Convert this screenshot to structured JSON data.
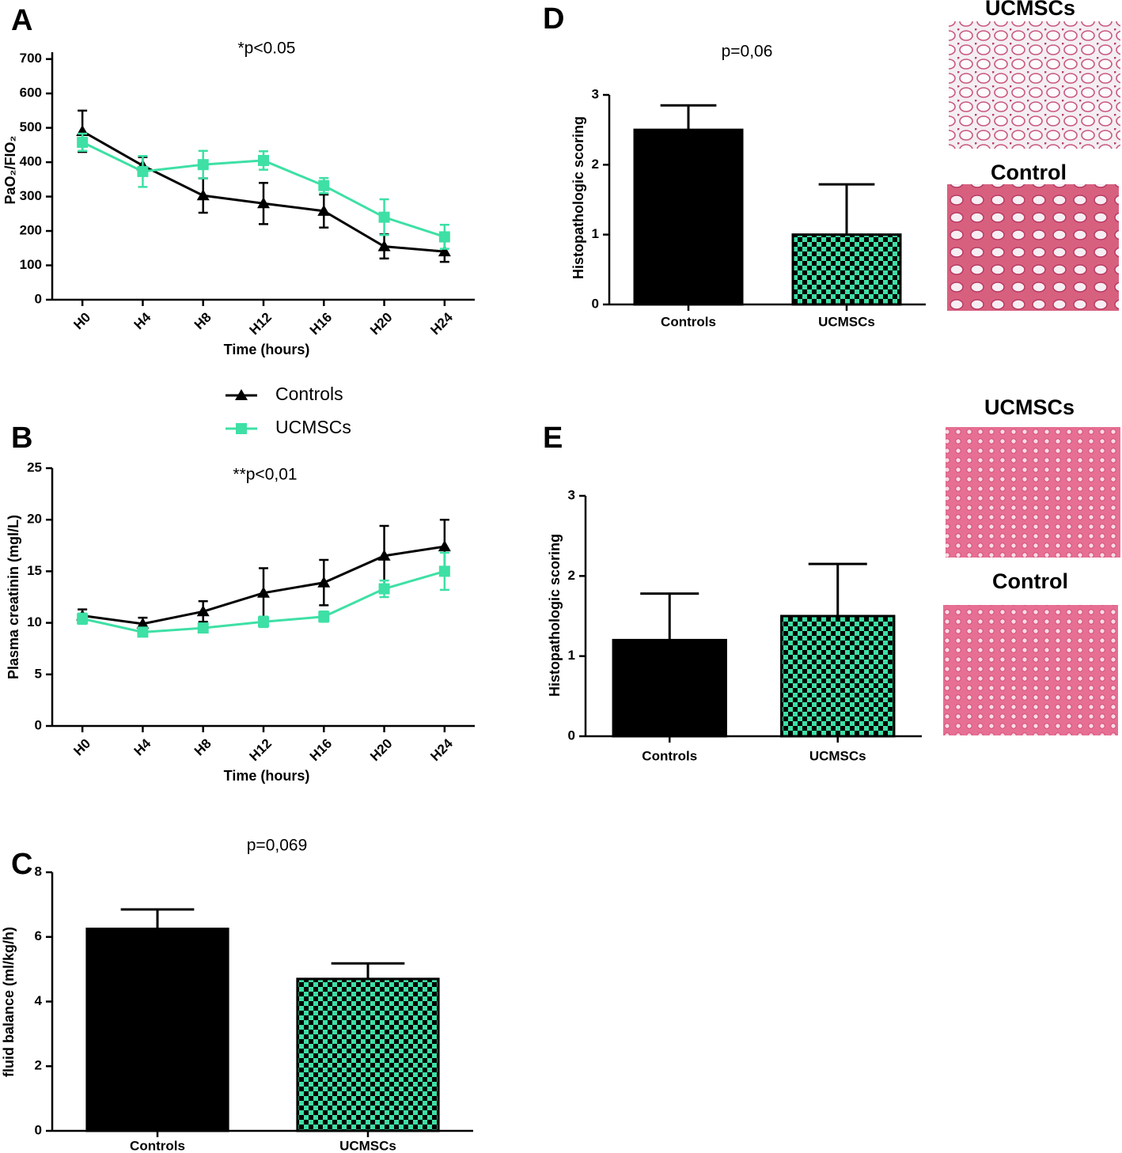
{
  "chart_data": [
    {
      "type": "line",
      "panel": "A",
      "annotation": "*p<0.05",
      "x_label": "Time (hours)",
      "y_label": "PaO₂/FIO₂",
      "categories": [
        "H0",
        "H4",
        "H8",
        "H12",
        "H16",
        "H20",
        "H24"
      ],
      "ylim": [
        0,
        720
      ],
      "yticks": [
        0,
        100,
        200,
        300,
        400,
        500,
        600,
        700
      ],
      "legend": "below",
      "series": [
        {
          "name": "Controls",
          "color": "#000000",
          "marker": "triangle",
          "values": [
            490,
            390,
            303,
            280,
            258,
            155,
            140
          ],
          "errors": [
            60,
            25,
            50,
            60,
            48,
            35,
            30
          ]
        },
        {
          "name": "UCMSCs",
          "color": "#3ee0a5",
          "marker": "square",
          "values": [
            458,
            373,
            393,
            405,
            332,
            240,
            183
          ],
          "errors": [
            25,
            45,
            40,
            27,
            22,
            52,
            35
          ]
        }
      ]
    },
    {
      "type": "line",
      "panel": "B",
      "annotation": "**p<0,01",
      "x_label": "Time (hours)",
      "y_label": "Plasma creatinin (mgl/L)",
      "categories": [
        "H0",
        "H4",
        "H8",
        "H12",
        "H16",
        "H20",
        "H24"
      ],
      "ylim": [
        0,
        25
      ],
      "yticks": [
        0,
        5,
        10,
        15,
        20,
        25
      ],
      "series": [
        {
          "color": "#000000",
          "marker": "triangle",
          "values": [
            10.7,
            9.9,
            11.1,
            12.9,
            13.9,
            16.5,
            17.4
          ],
          "errors": [
            0.6,
            0.6,
            1.0,
            2.4,
            2.2,
            2.9,
            2.6
          ]
        },
        {
          "color": "#3ee0a5",
          "marker": "square",
          "values": [
            10.4,
            9.1,
            9.5,
            10.1,
            10.6,
            13.3,
            15.0
          ],
          "errors": [
            0.5,
            0.4,
            0.4,
            0.5,
            0.5,
            0.8,
            1.8
          ]
        }
      ]
    },
    {
      "type": "bar",
      "panel": "C",
      "annotation": "p=0,069",
      "y_label": "fluid balance (ml/kg/h)",
      "categories": [
        "Controls",
        "UCMSCs"
      ],
      "values": [
        6.25,
        4.7
      ],
      "errors": [
        0.6,
        0.48
      ],
      "colors": [
        "#000000",
        "#3ee0a5"
      ],
      "patterns": [
        "solid",
        "checkerboard"
      ],
      "error_bars": "both",
      "ylim": [
        0,
        8
      ],
      "yticks": [
        0,
        2,
        4,
        6,
        8
      ]
    },
    {
      "type": "bar",
      "panel": "D",
      "annotation": "p=0,06",
      "y_label": "Histopathologic scoring",
      "categories": [
        "Controls",
        "UCMSCs"
      ],
      "values": [
        2.5,
        1.0
      ],
      "errors": [
        0.35,
        0.72
      ],
      "colors": [
        "#000000",
        "#3ee0a5"
      ],
      "patterns": [
        "solid",
        "checkerboard"
      ],
      "error_bars": "upper",
      "ylim": [
        0,
        3
      ],
      "yticks": [
        0,
        1,
        2,
        3
      ],
      "images": [
        "UCMSCs",
        "Control"
      ]
    },
    {
      "type": "bar",
      "panel": "E",
      "y_label": "Histopathologic scoring",
      "categories": [
        "Controls",
        "UCMSCs"
      ],
      "values": [
        1.2,
        1.5
      ],
      "errors": [
        0.58,
        0.65
      ],
      "colors": [
        "#000000",
        "#3ee0a5"
      ],
      "patterns": [
        "solid",
        "checkerboard"
      ],
      "error_bars": "upper",
      "ylim": [
        0,
        3
      ],
      "yticks": [
        0,
        1,
        2,
        3
      ],
      "images": [
        "UCMSCs",
        "Control"
      ]
    }
  ]
}
